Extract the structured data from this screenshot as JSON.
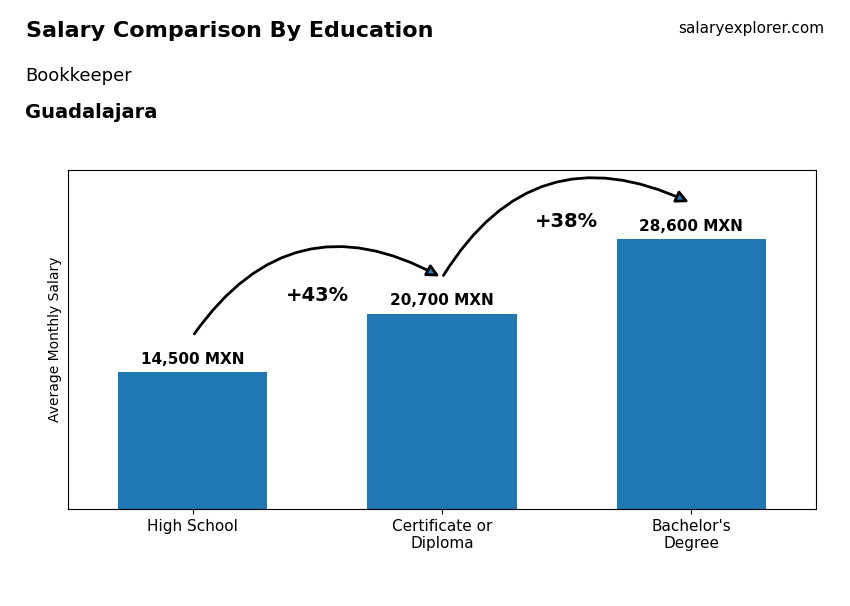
{
  "chart_data": {
    "type": "bar",
    "title": "Salary Comparison By Education",
    "subtitle": "Bookkeeper",
    "y_label": "Average Monthly Salary",
    "categories": [
      "High School",
      "Certificate or\nDiploma",
      "Bachelor's\nDegree"
    ],
    "values": [
      14500,
      20700,
      28600
    ],
    "value_labels": [
      "14,500 MXN",
      "20,700 MXN",
      "28,600 MXN"
    ],
    "data_labels": true,
    "ylim": [
      0,
      36000
    ],
    "yticks": [],
    "tick_labels": "x",
    "grid": false,
    "annotations": [
      {
        "text": "Guadalajara"
      },
      {
        "text": "salaryexplorer.com"
      },
      {
        "text": "+43%",
        "from": 0,
        "to": 1
      },
      {
        "text": "+38%",
        "from": 1,
        "to": 2
      }
    ]
  }
}
